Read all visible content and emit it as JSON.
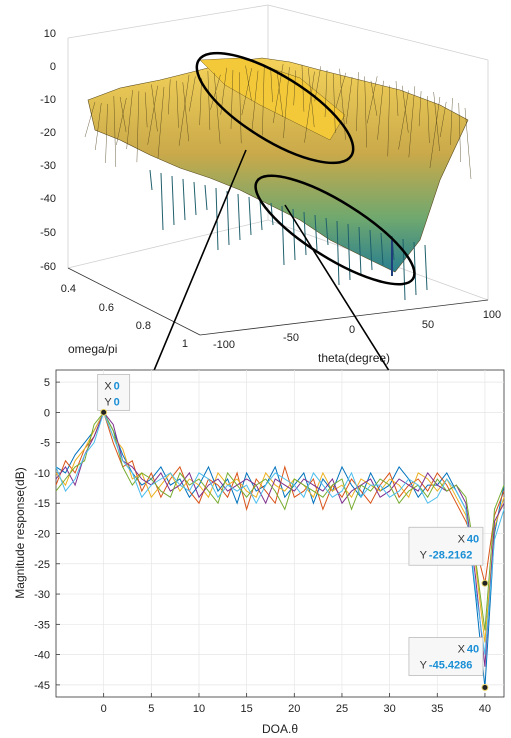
{
  "top_plot": {
    "xlabel": "theta(degree)",
    "ylabel": "omega/pi",
    "z_ticks": [
      "10",
      "0",
      "-10",
      "-20",
      "-30",
      "-40",
      "-50",
      "-60"
    ],
    "omega_ticks": [
      "0.4",
      "0.6",
      "0.8",
      "1"
    ],
    "theta_ticks": [
      "-100",
      "-50",
      "0",
      "50",
      "100"
    ]
  },
  "chart_data": [
    {
      "type": "surface",
      "xlabel": "theta(degree)",
      "ylabel": "omega/pi",
      "zlabel": "",
      "xlim": [
        -100,
        100
      ],
      "ylim": [
        0.3,
        1.0
      ],
      "zlim": [
        -60,
        10
      ],
      "colormap": "parula-like (yellow high, teal/blue low)",
      "annotations": [
        "ellipse around main ridge near theta 0",
        "ellipse around deep null near theta 40"
      ]
    },
    {
      "type": "line",
      "xlabel": "DOA.θ",
      "ylabel": "Magnitude response(dB)",
      "xlim": [
        -5,
        42
      ],
      "ylim": [
        -47,
        7
      ],
      "x_ticks": [
        0,
        5,
        10,
        15,
        20,
        25,
        30,
        35,
        40
      ],
      "y_ticks": [
        5,
        0,
        -5,
        -10,
        -15,
        -20,
        -25,
        -30,
        -35,
        -40,
        -45
      ],
      "series": [
        {
          "color": "#0072BD",
          "x": [
            -5,
            -4,
            -3,
            -2,
            -1,
            0,
            1,
            2,
            3,
            4,
            5,
            6,
            7,
            8,
            9,
            10,
            11,
            12,
            13,
            14,
            15,
            16,
            17,
            18,
            19,
            20,
            21,
            22,
            23,
            24,
            25,
            26,
            27,
            28,
            29,
            30,
            31,
            32,
            33,
            34,
            35,
            36,
            37,
            38,
            39,
            40,
            41,
            42
          ],
          "y": [
            -9,
            -10,
            -7,
            -5,
            -3,
            0,
            -3,
            -7,
            -10,
            -12,
            -11,
            -9,
            -12,
            -11,
            -14,
            -12,
            -9,
            -13,
            -11,
            -15,
            -10,
            -13,
            -12,
            -9,
            -14,
            -12,
            -10,
            -15,
            -11,
            -13,
            -9,
            -12,
            -14,
            -10,
            -13,
            -12,
            -9,
            -11,
            -14,
            -12,
            -12,
            -10,
            -13,
            -16,
            -30,
            -45.4286,
            -20,
            -12
          ]
        },
        {
          "color": "#D95319",
          "x": [
            -5,
            -4,
            -3,
            -2,
            -1,
            0,
            1,
            2,
            3,
            4,
            5,
            6,
            7,
            8,
            9,
            10,
            11,
            12,
            13,
            14,
            15,
            16,
            17,
            18,
            19,
            20,
            21,
            22,
            23,
            24,
            25,
            26,
            27,
            28,
            29,
            30,
            31,
            32,
            33,
            34,
            35,
            36,
            37,
            38,
            39,
            40,
            41,
            42
          ],
          "y": [
            -12,
            -8,
            -10,
            -6,
            -4,
            0,
            -5,
            -9,
            -8,
            -13,
            -10,
            -14,
            -11,
            -9,
            -13,
            -15,
            -11,
            -12,
            -14,
            -10,
            -16,
            -11,
            -13,
            -15,
            -9,
            -14,
            -13,
            -11,
            -16,
            -12,
            -14,
            -11,
            -13,
            -15,
            -12,
            -10,
            -14,
            -12,
            -11,
            -13,
            -10,
            -12,
            -15,
            -18,
            -22,
            -28.2162,
            -17,
            -13
          ]
        },
        {
          "color": "#EDB120",
          "x": [
            -5,
            -4,
            -3,
            -2,
            -1,
            0,
            1,
            2,
            3,
            4,
            5,
            6,
            7,
            8,
            9,
            10,
            11,
            12,
            13,
            14,
            15,
            16,
            17,
            18,
            19,
            20,
            21,
            22,
            23,
            24,
            25,
            26,
            27,
            28,
            29,
            30,
            31,
            32,
            33,
            34,
            35,
            36,
            37,
            38,
            39,
            40,
            41,
            42
          ],
          "y": [
            -10,
            -12,
            -8,
            -6,
            -3,
            0,
            -4,
            -6,
            -11,
            -10,
            -14,
            -12,
            -10,
            -13,
            -11,
            -12,
            -14,
            -10,
            -12,
            -11,
            -13,
            -14,
            -10,
            -12,
            -13,
            -11,
            -12,
            -14,
            -10,
            -13,
            -12,
            -14,
            -11,
            -12,
            -13,
            -11,
            -12,
            -14,
            -10,
            -11,
            -13,
            -11,
            -14,
            -17,
            -25,
            -38,
            -19,
            -14
          ]
        },
        {
          "color": "#7E2F8E",
          "x": [
            -5,
            -4,
            -3,
            -2,
            -1,
            0,
            1,
            2,
            3,
            4,
            5,
            6,
            7,
            8,
            9,
            10,
            11,
            12,
            13,
            14,
            15,
            16,
            17,
            18,
            19,
            20,
            21,
            22,
            23,
            24,
            25,
            26,
            27,
            28,
            29,
            30,
            31,
            32,
            33,
            34,
            35,
            36,
            37,
            38,
            39,
            40,
            41,
            42
          ],
          "y": [
            -11,
            -9,
            -12,
            -7,
            -4,
            0,
            -2,
            -8,
            -9,
            -11,
            -12,
            -10,
            -13,
            -12,
            -10,
            -14,
            -12,
            -11,
            -13,
            -12,
            -11,
            -12,
            -15,
            -11,
            -12,
            -13,
            -11,
            -12,
            -13,
            -11,
            -15,
            -13,
            -12,
            -11,
            -14,
            -13,
            -11,
            -12,
            -13,
            -10,
            -12,
            -13,
            -12,
            -15,
            -27,
            -42,
            -18,
            -15
          ]
        },
        {
          "color": "#77AC30",
          "x": [
            -5,
            -4,
            -3,
            -2,
            -1,
            0,
            1,
            2,
            3,
            4,
            5,
            6,
            7,
            8,
            9,
            10,
            11,
            12,
            13,
            14,
            15,
            16,
            17,
            18,
            19,
            20,
            21,
            22,
            23,
            24,
            25,
            26,
            27,
            28,
            29,
            30,
            31,
            32,
            33,
            34,
            35,
            36,
            37,
            38,
            39,
            40,
            41,
            42
          ],
          "y": [
            -13,
            -11,
            -9,
            -8,
            -2,
            0,
            -3,
            -9,
            -12,
            -10,
            -11,
            -13,
            -14,
            -10,
            -12,
            -11,
            -13,
            -15,
            -10,
            -12,
            -14,
            -12,
            -11,
            -13,
            -16,
            -11,
            -12,
            -13,
            -14,
            -12,
            -11,
            -16,
            -12,
            -13,
            -11,
            -12,
            -15,
            -13,
            -12,
            -14,
            -11,
            -13,
            -12,
            -14,
            -24,
            -36,
            -16,
            -12
          ]
        },
        {
          "color": "#4DBEEE",
          "x": [
            -5,
            -4,
            -3,
            -2,
            -1,
            0,
            1,
            2,
            3,
            4,
            5,
            6,
            7,
            8,
            9,
            10,
            11,
            12,
            13,
            14,
            15,
            16,
            17,
            18,
            19,
            20,
            21,
            22,
            23,
            24,
            25,
            26,
            27,
            28,
            29,
            30,
            31,
            32,
            33,
            34,
            35,
            36,
            37,
            38,
            39,
            40,
            41,
            42
          ],
          "y": [
            -9,
            -13,
            -11,
            -7,
            -5,
            0,
            -4,
            -8,
            -10,
            -14,
            -12,
            -11,
            -10,
            -12,
            -13,
            -10,
            -11,
            -14,
            -12,
            -13,
            -12,
            -15,
            -12,
            -10,
            -11,
            -12,
            -14,
            -10,
            -12,
            -14,
            -13,
            -10,
            -14,
            -12,
            -12,
            -14,
            -13,
            -11,
            -12,
            -15,
            -14,
            -11,
            -13,
            -16,
            -29,
            -40,
            -21,
            -16
          ]
        }
      ],
      "datatips": [
        {
          "x_label": "X",
          "x_value": "0",
          "y_label": "Y",
          "y_value": "0",
          "x": 0,
          "y": 0
        },
        {
          "x_label": "X",
          "x_value": "40",
          "y_label": "Y",
          "y_value": "-28.2162",
          "x": 40,
          "y": -28.2162
        },
        {
          "x_label": "X",
          "x_value": "40",
          "y_label": "Y",
          "y_value": "-45.4286",
          "x": 40,
          "y": -45.4286
        }
      ]
    }
  ]
}
